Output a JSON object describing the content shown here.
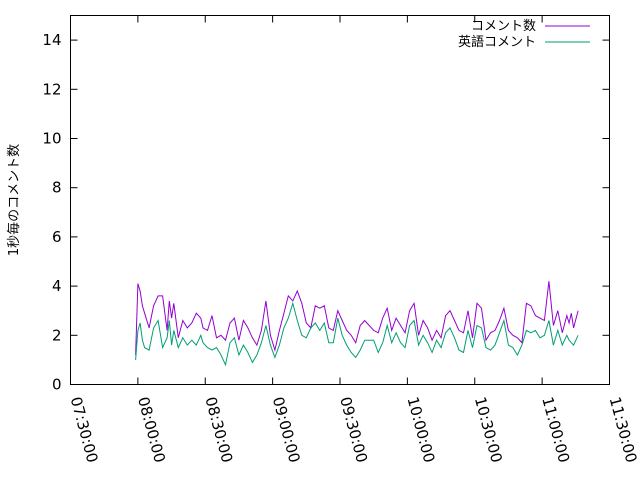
{
  "chart_data": {
    "type": "line",
    "title": "",
    "xlabel": "",
    "ylabel": "1秒毎のコメント数",
    "ylim": [
      0,
      15
    ],
    "xlim": [
      "07:30:00",
      "11:30:00"
    ],
    "y_ticks": [
      "0",
      "2",
      "4",
      "6",
      "8",
      "10",
      "12",
      "14"
    ],
    "x_ticks": [
      "07:30:00",
      "08:00:00",
      "08:30:00",
      "09:00:00",
      "09:30:00",
      "10:00:00",
      "10:30:00",
      "11:00:00",
      "11:30:00"
    ],
    "grid": false,
    "legend": "top-right",
    "series": [
      {
        "name": "コメント数",
        "color": "#9400d3",
        "x": [
          "07:59:00",
          "08:00:00",
          "08:01:00",
          "08:02:00",
          "08:03:00",
          "08:05:00",
          "08:07:00",
          "08:09:00",
          "08:11:00",
          "08:13:00",
          "08:14:00",
          "08:15:00",
          "08:16:00",
          "08:18:00",
          "08:20:00",
          "08:22:00",
          "08:24:00",
          "08:26:00",
          "08:28:00",
          "08:29:00",
          "08:31:00",
          "08:33:00",
          "08:35:00",
          "08:37:00",
          "08:39:00",
          "08:41:00",
          "08:43:00",
          "08:45:00",
          "08:47:00",
          "08:49:00",
          "08:51:00",
          "08:53:00",
          "08:55:00",
          "08:57:00",
          "08:59:00",
          "09:01:00",
          "09:03:00",
          "09:05:00",
          "09:07:00",
          "09:09:00",
          "09:11:00",
          "09:13:00",
          "09:15:00",
          "09:17:00",
          "09:19:00",
          "09:21:00",
          "09:23:00",
          "09:25:00",
          "09:27:00",
          "09:29:00",
          "09:31:00",
          "09:33:00",
          "09:35:00",
          "09:37:00",
          "09:39:00",
          "09:41:00",
          "09:43:00",
          "09:45:00",
          "09:47:00",
          "09:49:00",
          "09:51:00",
          "09:53:00",
          "09:55:00",
          "09:57:00",
          "09:59:00",
          "10:01:00",
          "10:03:00",
          "10:05:00",
          "10:07:00",
          "10:09:00",
          "10:11:00",
          "10:13:00",
          "10:15:00",
          "10:17:00",
          "10:19:00",
          "10:21:00",
          "10:23:00",
          "10:25:00",
          "10:27:00",
          "10:29:00",
          "10:31:00",
          "10:33:00",
          "10:35:00",
          "10:37:00",
          "10:39:00",
          "10:41:00",
          "10:43:00",
          "10:45:00",
          "10:47:00",
          "10:49:00",
          "10:51:00",
          "10:53:00",
          "10:55:00",
          "10:57:00",
          "10:59:00",
          "11:01:00",
          "11:03:00",
          "11:05:00",
          "11:07:00",
          "11:09:00",
          "11:11:00",
          "11:12:00",
          "11:13:00",
          "11:14:00",
          "11:16:00"
        ],
        "values": [
          1.2,
          4.1,
          3.8,
          3.2,
          2.9,
          2.3,
          3.2,
          3.6,
          3.6,
          2.2,
          3.4,
          2.7,
          3.3,
          1.9,
          2.6,
          2.3,
          2.5,
          2.9,
          2.7,
          2.3,
          2.2,
          2.8,
          1.9,
          2.0,
          1.8,
          2.5,
          2.7,
          1.8,
          2.6,
          2.3,
          1.9,
          1.6,
          2.2,
          3.4,
          2.0,
          1.4,
          2.2,
          2.9,
          3.6,
          3.4,
          3.8,
          3.3,
          2.5,
          2.3,
          3.2,
          3.1,
          3.2,
          2.3,
          2.2,
          3.0,
          2.6,
          2.2,
          2.0,
          1.7,
          2.4,
          2.6,
          2.4,
          2.2,
          2.1,
          2.7,
          3.1,
          2.2,
          2.7,
          2.4,
          2.1,
          3.0,
          3.3,
          2.0,
          2.6,
          2.3,
          1.8,
          2.2,
          1.9,
          2.8,
          3.0,
          2.6,
          2.2,
          2.1,
          3.0,
          1.9,
          3.3,
          3.1,
          1.8,
          2.1,
          2.2,
          2.6,
          3.1,
          2.2,
          2.0,
          1.9,
          1.7,
          3.3,
          3.2,
          2.8,
          2.7,
          2.6,
          4.2,
          2.4,
          3.0,
          2.1,
          2.8,
          2.5,
          2.9,
          2.3,
          3.0
        ]
      },
      {
        "name": "英語コメント",
        "color": "#009e73",
        "x": [
          "07:59:00",
          "08:00:00",
          "08:01:00",
          "08:02:00",
          "08:03:00",
          "08:05:00",
          "08:07:00",
          "08:09:00",
          "08:11:00",
          "08:13:00",
          "08:14:00",
          "08:15:00",
          "08:16:00",
          "08:18:00",
          "08:20:00",
          "08:22:00",
          "08:24:00",
          "08:26:00",
          "08:28:00",
          "08:29:00",
          "08:31:00",
          "08:33:00",
          "08:35:00",
          "08:37:00",
          "08:39:00",
          "08:41:00",
          "08:43:00",
          "08:45:00",
          "08:47:00",
          "08:49:00",
          "08:51:00",
          "08:53:00",
          "08:55:00",
          "08:57:00",
          "08:59:00",
          "09:01:00",
          "09:03:00",
          "09:05:00",
          "09:07:00",
          "09:09:00",
          "09:11:00",
          "09:13:00",
          "09:15:00",
          "09:17:00",
          "09:19:00",
          "09:21:00",
          "09:23:00",
          "09:25:00",
          "09:27:00",
          "09:29:00",
          "09:31:00",
          "09:33:00",
          "09:35:00",
          "09:37:00",
          "09:39:00",
          "09:41:00",
          "09:43:00",
          "09:45:00",
          "09:47:00",
          "09:49:00",
          "09:51:00",
          "09:53:00",
          "09:55:00",
          "09:57:00",
          "09:59:00",
          "10:01:00",
          "10:03:00",
          "10:05:00",
          "10:07:00",
          "10:09:00",
          "10:11:00",
          "10:13:00",
          "10:15:00",
          "10:17:00",
          "10:19:00",
          "10:21:00",
          "10:23:00",
          "10:25:00",
          "10:27:00",
          "10:29:00",
          "10:31:00",
          "10:33:00",
          "10:35:00",
          "10:37:00",
          "10:39:00",
          "10:41:00",
          "10:43:00",
          "10:45:00",
          "10:47:00",
          "10:49:00",
          "10:51:00",
          "10:53:00",
          "10:55:00",
          "10:57:00",
          "10:59:00",
          "11:01:00",
          "11:03:00",
          "11:05:00",
          "11:07:00",
          "11:09:00",
          "11:11:00",
          "11:12:00",
          "11:13:00",
          "11:14:00",
          "11:16:00"
        ],
        "values": [
          1.0,
          2.2,
          2.5,
          1.8,
          1.5,
          1.4,
          2.3,
          2.6,
          1.5,
          1.9,
          2.6,
          1.6,
          2.2,
          1.5,
          1.9,
          1.6,
          1.8,
          1.6,
          2.0,
          1.7,
          1.5,
          1.4,
          1.5,
          1.2,
          0.8,
          1.7,
          1.9,
          1.2,
          1.6,
          1.3,
          0.9,
          1.2,
          1.7,
          2.4,
          1.6,
          1.1,
          1.6,
          2.3,
          2.7,
          3.3,
          2.6,
          2.0,
          1.9,
          2.3,
          2.5,
          2.2,
          2.5,
          1.7,
          1.7,
          2.7,
          2.0,
          1.6,
          1.3,
          1.1,
          1.4,
          1.8,
          1.8,
          1.8,
          1.3,
          1.7,
          2.4,
          1.7,
          2.1,
          1.7,
          1.5,
          2.4,
          2.6,
          1.6,
          2.0,
          1.7,
          1.3,
          1.8,
          1.5,
          2.1,
          2.3,
          1.9,
          1.4,
          1.3,
          2.2,
          1.5,
          2.4,
          2.3,
          1.5,
          1.4,
          1.6,
          2.1,
          2.6,
          1.6,
          1.5,
          1.2,
          1.6,
          2.2,
          2.1,
          2.2,
          1.9,
          2.0,
          2.6,
          1.6,
          2.2,
          1.6,
          2.0,
          1.8,
          1.7,
          1.6,
          2.0
        ]
      }
    ]
  }
}
